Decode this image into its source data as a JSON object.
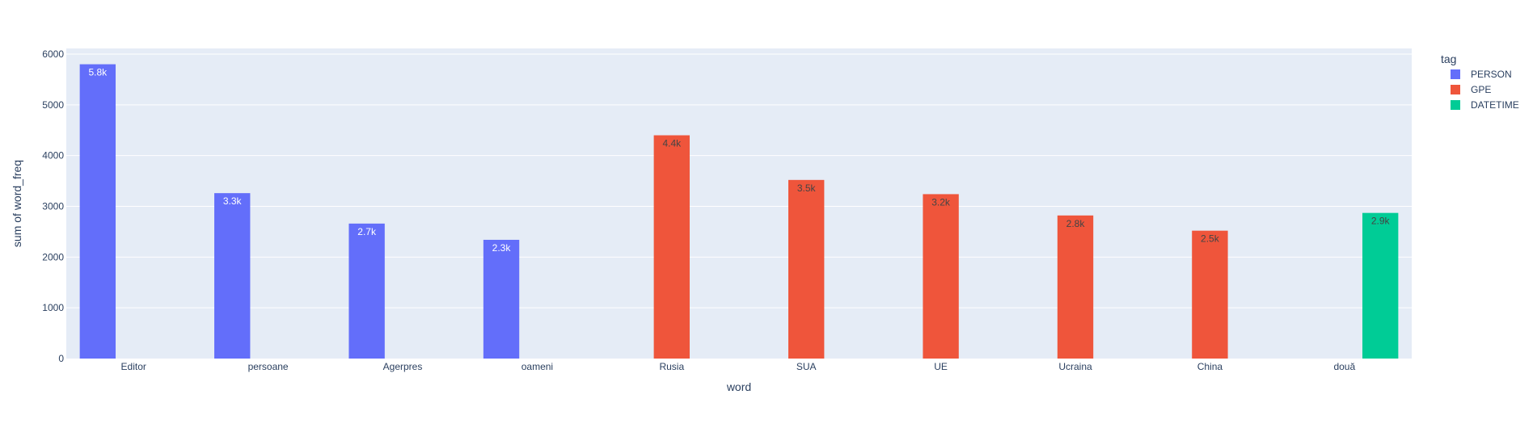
{
  "chart_data": {
    "type": "bar",
    "barmode": "group",
    "xlabel": "word",
    "ylabel": "sum of word_freq",
    "ylim": [
      0,
      6000
    ],
    "yticks": [
      0,
      1000,
      2000,
      3000,
      4000,
      5000,
      6000
    ],
    "yticklabels": [
      "0",
      "1000",
      "2000",
      "3000",
      "4000",
      "5000",
      "6000"
    ],
    "categories": [
      "Editor",
      "persoane",
      "Agerpres",
      "oameni",
      "Rusia",
      "SUA",
      "UE",
      "Ucraina",
      "China",
      "două"
    ],
    "legend": {
      "title": "tag",
      "placement": "right"
    },
    "grid": true,
    "series": [
      {
        "name": "PERSON",
        "color": "#636efa",
        "label_color": "#ffffff",
        "points": [
          {
            "category": "Editor",
            "value": 5800,
            "label": "5.8k"
          },
          {
            "category": "persoane",
            "value": 3260,
            "label": "3.3k"
          },
          {
            "category": "Agerpres",
            "value": 2660,
            "label": "2.7k"
          },
          {
            "category": "oameni",
            "value": 2340,
            "label": "2.3k"
          }
        ]
      },
      {
        "name": "GPE",
        "color": "#ef553b",
        "label_color": "#444444",
        "points": [
          {
            "category": "Rusia",
            "value": 4400,
            "label": "4.4k"
          },
          {
            "category": "SUA",
            "value": 3520,
            "label": "3.5k"
          },
          {
            "category": "UE",
            "value": 3240,
            "label": "3.2k"
          },
          {
            "category": "Ucraina",
            "value": 2820,
            "label": "2.8k"
          },
          {
            "category": "China",
            "value": 2520,
            "label": "2.5k"
          }
        ]
      },
      {
        "name": "DATETIME",
        "color": "#00cc96",
        "label_color": "#444444",
        "points": [
          {
            "category": "două",
            "value": 2870,
            "label": "2.9k"
          }
        ]
      }
    ]
  }
}
